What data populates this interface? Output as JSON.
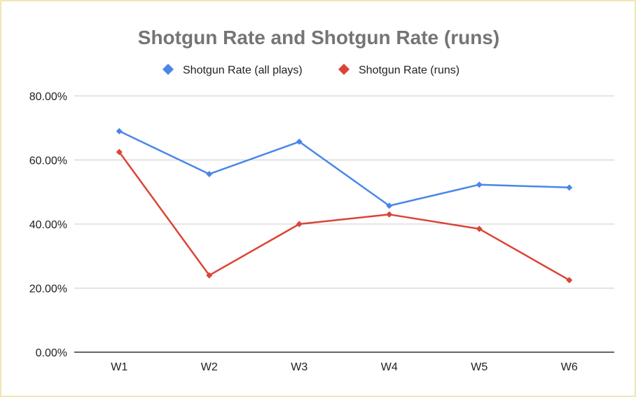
{
  "chart_data": {
    "type": "line",
    "title": "Shotgun Rate and Shotgun Rate (runs)",
    "xlabel": "",
    "ylabel": "",
    "categories": [
      "W1",
      "W2",
      "W3",
      "W4",
      "W5",
      "W6"
    ],
    "y_ticks": [
      0,
      20,
      40,
      60,
      80
    ],
    "y_tick_labels": [
      "0.00%",
      "20.00%",
      "40.00%",
      "60.00%",
      "80.00%"
    ],
    "ylim": [
      0,
      80
    ],
    "grid": true,
    "legend_position": "top",
    "series": [
      {
        "name": "Shotgun Rate (all plays)",
        "color": "#4a86e8",
        "marker": "diamond",
        "values": [
          69,
          55.6,
          65.7,
          45.7,
          52.3,
          51.4
        ]
      },
      {
        "name": "Shotgun Rate (runs)",
        "color": "#db4437",
        "marker": "diamond",
        "values": [
          62.5,
          24,
          40,
          43,
          38.5,
          22.5
        ]
      }
    ]
  }
}
